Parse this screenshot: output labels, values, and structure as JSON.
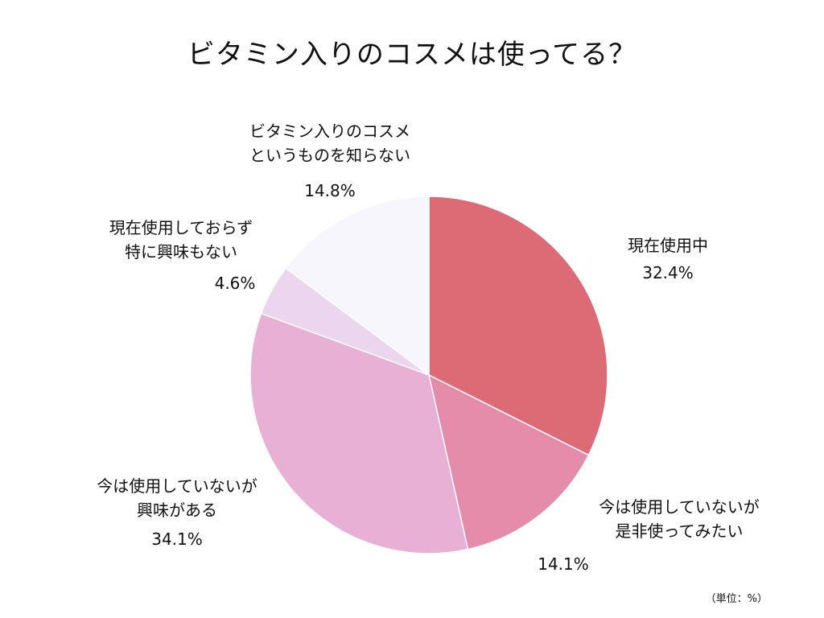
{
  "title": "ビタミン入りのコスメは使ってる？",
  "unit_note": "（単位：%）",
  "chart_data": {
    "type": "pie",
    "title": "ビタミン入りのコスメは使ってる？",
    "slices": [
      {
        "label_lines": [
          "現在使用中"
        ],
        "value": 32.4,
        "pct_label": "32.4%",
        "color": "#dc6b75"
      },
      {
        "label_lines": [
          "今は使用していないが",
          "是非使ってみたい"
        ],
        "value": 14.1,
        "pct_label": "14.1%",
        "color": "#e68cab"
      },
      {
        "label_lines": [
          "今は使用していないが",
          "興味がある"
        ],
        "value": 34.1,
        "pct_label": "34.1%",
        "color": "#e8b0d5"
      },
      {
        "label_lines": [
          "現在使用しておらず",
          "特に興味もない"
        ],
        "value": 4.6,
        "pct_label": "4.6%",
        "color": "#ebd5ef"
      },
      {
        "label_lines": [
          "ビタミン入りのコスメ",
          "というものを知らない"
        ],
        "value": 14.8,
        "pct_label": "14.8%",
        "color": "#f8f6fd"
      }
    ],
    "start": "12 o'clock",
    "direction": "clockwise",
    "legend": "none"
  }
}
